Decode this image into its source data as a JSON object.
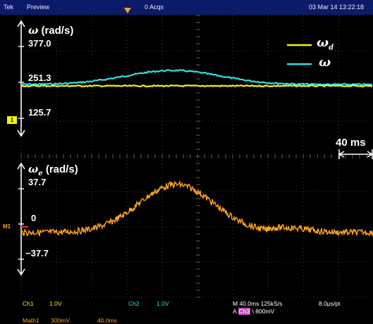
{
  "header": {
    "brand": "Tek",
    "mode": "Preview",
    "acqs": "0 Acqs",
    "datetime": "03 Mar 14 13:22:18"
  },
  "colors": {
    "ch1": "#f5f500",
    "ch2": "#30e0e0",
    "math": "#ffa41c",
    "grid": "#707070",
    "axis": "#ffffff",
    "header_bg": "#0c1a6a"
  },
  "top_plot": {
    "title_symbol": "ω",
    "title_unit": "(rad/s)",
    "ticks": [
      "377.0",
      "251.3",
      "125.7"
    ],
    "legend": [
      {
        "symbol": "ω",
        "sub": "d",
        "color_key": "ch1"
      },
      {
        "symbol": "ω",
        "sub": "",
        "color_key": "ch2"
      }
    ],
    "ch1_marker": "1"
  },
  "bottom_plot": {
    "title_symbol": "ω",
    "title_sub": "e",
    "title_unit": "(rad/s)",
    "ticks": [
      "37.7",
      "0",
      "−37.7"
    ],
    "math_marker": "M1"
  },
  "time_scale_label": "40 ms",
  "status_bar": {
    "ch1": "Ch1",
    "ch1_scale": "1.0V",
    "ch2": "Ch2",
    "ch2_scale": "1.0V",
    "timebase": "M 40.0ms  125kS/s",
    "sample": "8.0μs/pt",
    "trigger_prefix": "A",
    "trigger_source": "Ch3",
    "trigger_level": "\\  800mV",
    "math": "Math1",
    "math_scale": "300mV",
    "math_time": "40.0ms"
  }
}
